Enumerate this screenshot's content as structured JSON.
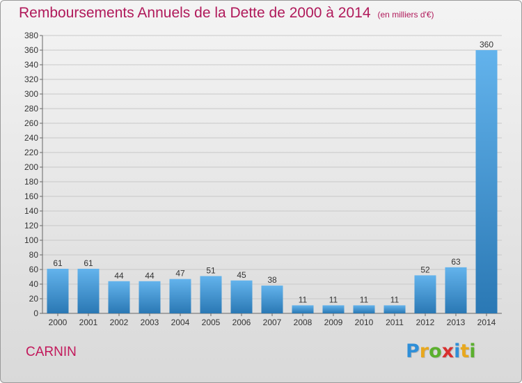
{
  "title": "Remboursements Annuels de la Dette de 2000 à 2014",
  "title_unit": "(en milliers d'€)",
  "place": "CARNIN",
  "logo": {
    "text": "Proxiti",
    "letters": [
      "P",
      "r",
      "o",
      "x",
      "i",
      "t",
      "i"
    ],
    "colors": [
      "#2f8fd8",
      "#e8a81e",
      "#5bb02e",
      "#d8302f",
      "#2f8fd8",
      "#e8a81e",
      "#5bb02e"
    ]
  },
  "colors": {
    "title": "#b0195a",
    "bar_top": "#63b3ec",
    "bar_bottom": "#2a78b4",
    "grid": "#c8c8c8"
  },
  "chart_data": {
    "type": "bar",
    "categories": [
      "2000",
      "2001",
      "2002",
      "2003",
      "2004",
      "2005",
      "2006",
      "2007",
      "2008",
      "2009",
      "2010",
      "2011",
      "2012",
      "2013",
      "2014"
    ],
    "values": [
      61,
      61,
      44,
      44,
      47,
      51,
      45,
      38,
      11,
      11,
      11,
      11,
      52,
      63,
      360
    ],
    "value_labels": [
      "61",
      "61",
      "44",
      "44",
      "47",
      "51",
      "45",
      "38",
      "11",
      "11",
      "11",
      "11",
      "52",
      "63",
      "360"
    ],
    "yticks": [
      0,
      20,
      40,
      60,
      80,
      100,
      120,
      140,
      160,
      180,
      200,
      220,
      240,
      260,
      280,
      300,
      320,
      340,
      360,
      380
    ],
    "ylim": [
      0,
      380
    ],
    "grid": true,
    "legend": "none"
  }
}
